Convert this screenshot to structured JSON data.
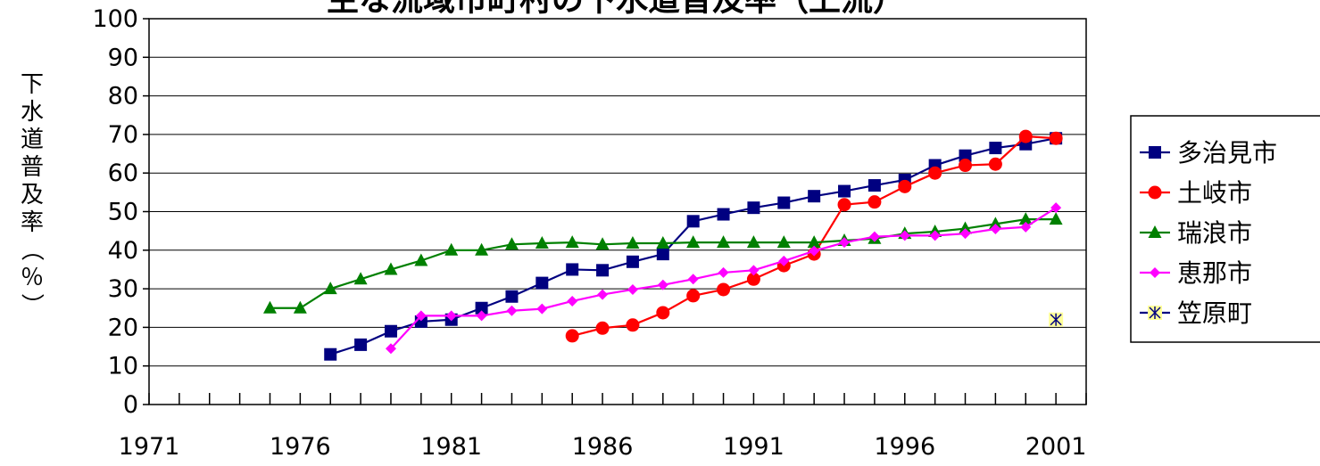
{
  "chart_data": {
    "type": "line",
    "title": "主な流域市町村の下水道普及率（上流）",
    "ylabel": "下水道普及率（％）",
    "xlabel": "",
    "xlim": [
      1971,
      2002
    ],
    "ylim": [
      0,
      100
    ],
    "x_ticks": [
      1971,
      1976,
      1981,
      1986,
      1991,
      1996,
      2001
    ],
    "y_ticks": [
      0,
      10,
      20,
      30,
      40,
      50,
      60,
      70,
      80,
      90,
      100
    ],
    "grid": "horizontal",
    "legend": "right",
    "series": [
      {
        "name": "多治見市",
        "color": "#000080",
        "marker": "square",
        "x": [
          1977,
          1978,
          1979,
          1980,
          1981,
          1982,
          1983,
          1984,
          1985,
          1986,
          1987,
          1988,
          1989,
          1990,
          1991,
          1992,
          1993,
          1994,
          1995,
          1996,
          1997,
          1998,
          1999,
          2000,
          2001
        ],
        "y": [
          13,
          15.5,
          19,
          21.5,
          22,
          25,
          28,
          31.5,
          35,
          34.8,
          37,
          39,
          47.5,
          49.3,
          51,
          52.3,
          54,
          55.3,
          56.8,
          58.2,
          62,
          64.5,
          66.5,
          67.5,
          69
        ]
      },
      {
        "name": "土岐市",
        "color": "#ff0000",
        "marker": "circle",
        "x": [
          1985,
          1986,
          1987,
          1988,
          1989,
          1990,
          1991,
          1992,
          1993,
          1994,
          1995,
          1996,
          1997,
          1998,
          1999,
          2000,
          2001
        ],
        "y": [
          17.8,
          19.8,
          20.6,
          23.8,
          28.2,
          29.8,
          32.5,
          36,
          39,
          51.8,
          52.5,
          56.5,
          60,
          62,
          62.3,
          69.5,
          69
        ]
      },
      {
        "name": "瑞浪市",
        "color": "#008000",
        "marker": "triangle",
        "x": [
          1975,
          1976,
          1977,
          1978,
          1979,
          1980,
          1981,
          1982,
          1983,
          1984,
          1985,
          1986,
          1987,
          1988,
          1989,
          1990,
          1991,
          1992,
          1993,
          1994,
          1995,
          1996,
          1997,
          1998,
          1999,
          2000,
          2001
        ],
        "y": [
          25,
          25,
          30,
          32.5,
          35,
          37.3,
          40,
          40,
          41.5,
          41.8,
          42,
          41.5,
          41.8,
          41.8,
          42,
          42,
          42,
          42,
          42,
          42.5,
          43,
          44.3,
          44.8,
          45.6,
          46.8,
          48,
          48
        ]
      },
      {
        "name": "恵那市",
        "color": "#ff00ff",
        "marker": "diamond",
        "x": [
          1979,
          1980,
          1981,
          1982,
          1983,
          1984,
          1985,
          1986,
          1987,
          1988,
          1989,
          1990,
          1991,
          1992,
          1993,
          1994,
          1995,
          1996,
          1997,
          1998,
          1999,
          2000,
          2001
        ],
        "y": [
          14.5,
          23,
          23,
          23,
          24.3,
          24.8,
          26.8,
          28.5,
          29.8,
          31,
          32.5,
          34.2,
          34.8,
          37.2,
          39.8,
          42,
          43.5,
          43.8,
          43.8,
          44.3,
          45.5,
          46,
          51
        ]
      },
      {
        "name": "笠原町",
        "color": "#000080",
        "marker": "asterisk",
        "marker_fill": "#ffff99",
        "x": [
          2001
        ],
        "y": [
          22
        ]
      }
    ]
  }
}
